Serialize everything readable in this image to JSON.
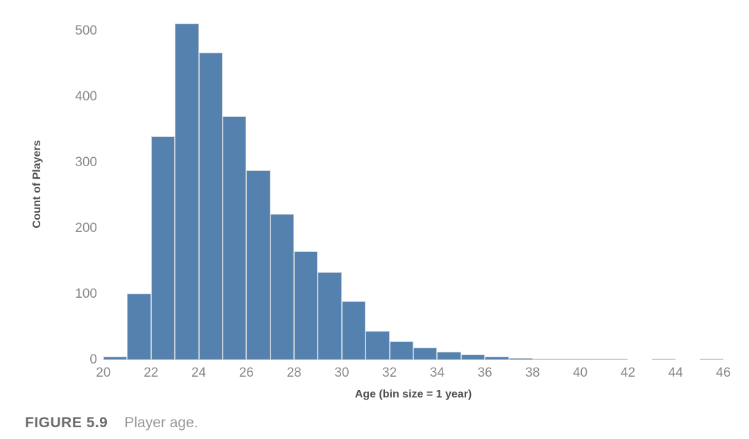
{
  "figure": {
    "caption_label": "FIGURE 5.9",
    "caption_text": "Player age."
  },
  "chart_data": {
    "type": "bar",
    "subtype": "histogram",
    "title": "",
    "xlabel": "Age (bin size = 1 year)",
    "ylabel": "Count of Players",
    "bin_size_years": 1,
    "xlim": [
      20,
      46
    ],
    "ylim": [
      0,
      525
    ],
    "grid": false,
    "legend": false,
    "x_ticks": [
      20,
      22,
      24,
      26,
      28,
      30,
      32,
      34,
      36,
      38,
      40,
      42,
      44,
      46
    ],
    "y_ticks": [
      0,
      100,
      200,
      300,
      400,
      500
    ],
    "bin_starts": [
      20,
      21,
      22,
      23,
      24,
      25,
      26,
      27,
      28,
      29,
      30,
      31,
      32,
      33,
      34,
      35,
      36,
      37,
      38,
      39,
      40,
      41,
      42,
      43,
      44,
      45
    ],
    "counts": [
      5,
      101,
      340,
      512,
      467,
      371,
      288,
      222,
      165,
      134,
      90,
      44,
      28,
      19,
      13,
      8,
      5,
      3,
      1,
      2,
      2,
      1,
      0,
      2,
      0,
      1
    ],
    "bar_color": "#5581ae",
    "bar_border_color": "#c6cfd8",
    "tick_label_color": "#86888b",
    "axis_title_color": "#4d4f52"
  }
}
